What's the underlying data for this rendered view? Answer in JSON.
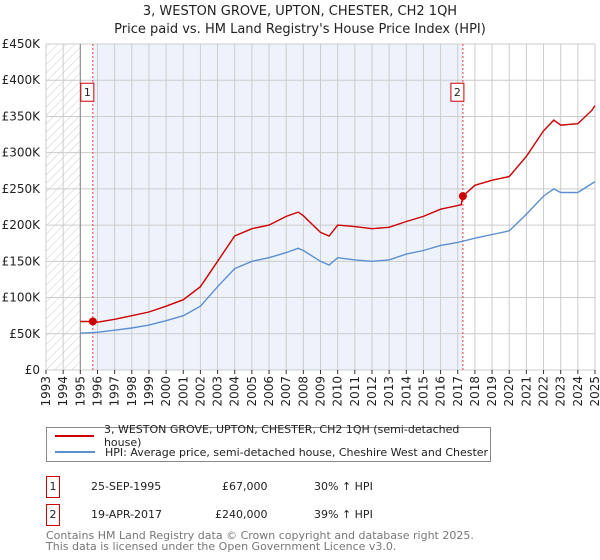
{
  "chart_data": {
    "type": "line",
    "title": "3, WESTON GROVE, UPTON, CHESTER, CH2 1QH",
    "subtitle": "Price paid vs. HM Land Registry's House Price Index (HPI)",
    "xlim": [
      1993,
      2025
    ],
    "ylim": [
      0,
      450000
    ],
    "y_ticks": [
      {
        "v": 0,
        "label": "£0"
      },
      {
        "v": 50000,
        "label": "£50K"
      },
      {
        "v": 100000,
        "label": "£100K"
      },
      {
        "v": 150000,
        "label": "£150K"
      },
      {
        "v": 200000,
        "label": "£200K"
      },
      {
        "v": 250000,
        "label": "£250K"
      },
      {
        "v": 300000,
        "label": "£300K"
      },
      {
        "v": 350000,
        "label": "£350K"
      },
      {
        "v": 400000,
        "label": "£400K"
      },
      {
        "v": 450000,
        "label": "£450K"
      }
    ],
    "x_ticks": [
      "1993",
      "1994",
      "1995",
      "1996",
      "1997",
      "1998",
      "1999",
      "2000",
      "2001",
      "2002",
      "2003",
      "2004",
      "2005",
      "2006",
      "2007",
      "2008",
      "2009",
      "2010",
      "2011",
      "2012",
      "2013",
      "2014",
      "2015",
      "2016",
      "2017",
      "2018",
      "2019",
      "2020",
      "2021",
      "2022",
      "2023",
      "2024",
      "2025"
    ],
    "grid": true,
    "series": [
      {
        "name": "3, WESTON GROVE, UPTON, CHESTER, CH2 1QH (semi-detached house)",
        "color": "#cc0000",
        "x": [
          1995.0,
          1995.73,
          1996,
          1997,
          1998,
          1999,
          2000,
          2001,
          2002,
          2003,
          2004,
          2005,
          2006,
          2007,
          2007.7,
          2008,
          2009,
          2009.5,
          2010,
          2011,
          2012,
          2013,
          2014,
          2015,
          2016,
          2017.2,
          2017.3,
          2018,
          2019,
          2020,
          2021,
          2022,
          2022.6,
          2023,
          2024,
          2024.8,
          2025
        ],
        "y": [
          67000,
          67000,
          66000,
          70000,
          75000,
          80000,
          88000,
          97000,
          115000,
          150000,
          185000,
          195000,
          200000,
          212000,
          218000,
          213000,
          190000,
          185000,
          200000,
          198000,
          195000,
          197000,
          205000,
          212000,
          222000,
          228000,
          240000,
          255000,
          262000,
          267000,
          295000,
          330000,
          345000,
          338000,
          340000,
          358000,
          365000
        ]
      },
      {
        "name": "HPI: Average price, semi-detached house, Cheshire West and Chester",
        "color": "#5b8fd0",
        "x": [
          1995.0,
          1996,
          1997,
          1998,
          1999,
          2000,
          2001,
          2002,
          2003,
          2004,
          2005,
          2006,
          2007,
          2007.7,
          2008,
          2009,
          2009.5,
          2010,
          2011,
          2012,
          2013,
          2014,
          2015,
          2016,
          2017,
          2018,
          2019,
          2020,
          2021,
          2022,
          2022.6,
          2023,
          2024,
          2025
        ],
        "y": [
          51000,
          52000,
          55000,
          58000,
          62000,
          68000,
          75000,
          88000,
          115000,
          140000,
          150000,
          155000,
          162000,
          168000,
          165000,
          150000,
          145000,
          155000,
          152000,
          150000,
          152000,
          160000,
          165000,
          172000,
          176000,
          182000,
          187000,
          192000,
          215000,
          240000,
          250000,
          245000,
          245000,
          260000
        ]
      }
    ],
    "sales": [
      {
        "n": "1",
        "x": 1995.73,
        "y": 67000
      },
      {
        "n": "2",
        "x": 2017.3,
        "y": 240000
      }
    ]
  },
  "legend": {
    "red": "3, WESTON GROVE, UPTON, CHESTER, CH2 1QH (semi-detached house)",
    "blue": "HPI: Average price, semi-detached house, Cheshire West and Chester"
  },
  "transactions": [
    {
      "n": "1",
      "date": "25-SEP-1995",
      "price": "£67,000",
      "hpi": "30% ↑ HPI"
    },
    {
      "n": "2",
      "date": "19-APR-2017",
      "price": "£240,000",
      "hpi": "39% ↑ HPI"
    }
  ],
  "footer": [
    "Contains HM Land Registry data © Crown copyright and database right 2025.",
    "This data is licensed under the Open Government Licence v3.0."
  ]
}
